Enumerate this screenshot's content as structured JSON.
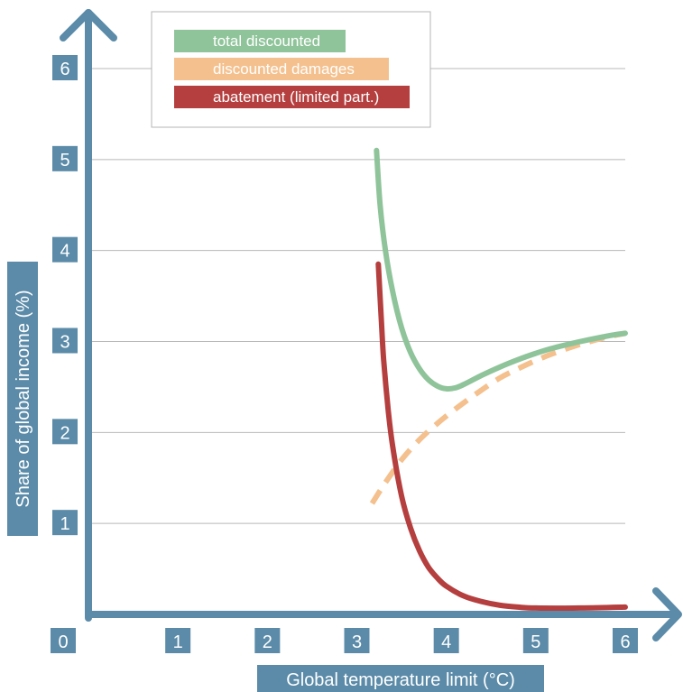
{
  "chart_data": {
    "type": "line",
    "xlabel": "Global temperature limit (°C)",
    "ylabel": "Share of global income (%)",
    "xlim": [
      0,
      6
    ],
    "ylim": [
      0,
      6
    ],
    "x_ticks": [
      "0",
      "1",
      "2",
      "3",
      "4",
      "5",
      "6"
    ],
    "y_ticks": [
      "1",
      "2",
      "3",
      "4",
      "5",
      "6"
    ],
    "grid": true,
    "legend_position": "top-left",
    "series": [
      {
        "name": "total discounted",
        "color": "#8fc49a",
        "style": "solid",
        "x": [
          3.22,
          3.26,
          3.32,
          3.4,
          3.5,
          3.6,
          3.7,
          3.8,
          3.9,
          4.0,
          4.1,
          4.2,
          4.4,
          4.6,
          4.8,
          5.0,
          5.2,
          5.5,
          5.8,
          6.0
        ],
        "y": [
          5.1,
          4.5,
          4.0,
          3.55,
          3.15,
          2.88,
          2.7,
          2.58,
          2.51,
          2.48,
          2.49,
          2.53,
          2.63,
          2.72,
          2.8,
          2.87,
          2.93,
          3.0,
          3.06,
          3.09
        ]
      },
      {
        "name": "discounted damages",
        "color": "#f4c08e",
        "style": "dashed",
        "x": [
          3.17,
          3.3,
          3.5,
          3.7,
          3.9,
          4.0,
          4.2,
          4.4,
          4.6,
          4.8,
          5.0,
          5.2,
          5.5,
          5.8,
          6.0
        ],
        "y": [
          1.22,
          1.42,
          1.7,
          1.92,
          2.1,
          2.18,
          2.33,
          2.47,
          2.6,
          2.7,
          2.79,
          2.87,
          2.97,
          3.05,
          3.09
        ]
      },
      {
        "name": "abatement (limited part.)",
        "color": "#b53f3f",
        "style": "solid",
        "x": [
          3.24,
          3.27,
          3.3,
          3.35,
          3.4,
          3.5,
          3.6,
          3.7,
          3.8,
          3.9,
          4.0,
          4.2,
          4.4,
          4.6,
          4.8,
          5.0,
          5.5,
          6.0
        ],
        "y": [
          3.85,
          3.3,
          2.8,
          2.25,
          1.85,
          1.3,
          0.95,
          0.7,
          0.52,
          0.4,
          0.31,
          0.2,
          0.14,
          0.1,
          0.08,
          0.07,
          0.07,
          0.08
        ]
      }
    ]
  }
}
